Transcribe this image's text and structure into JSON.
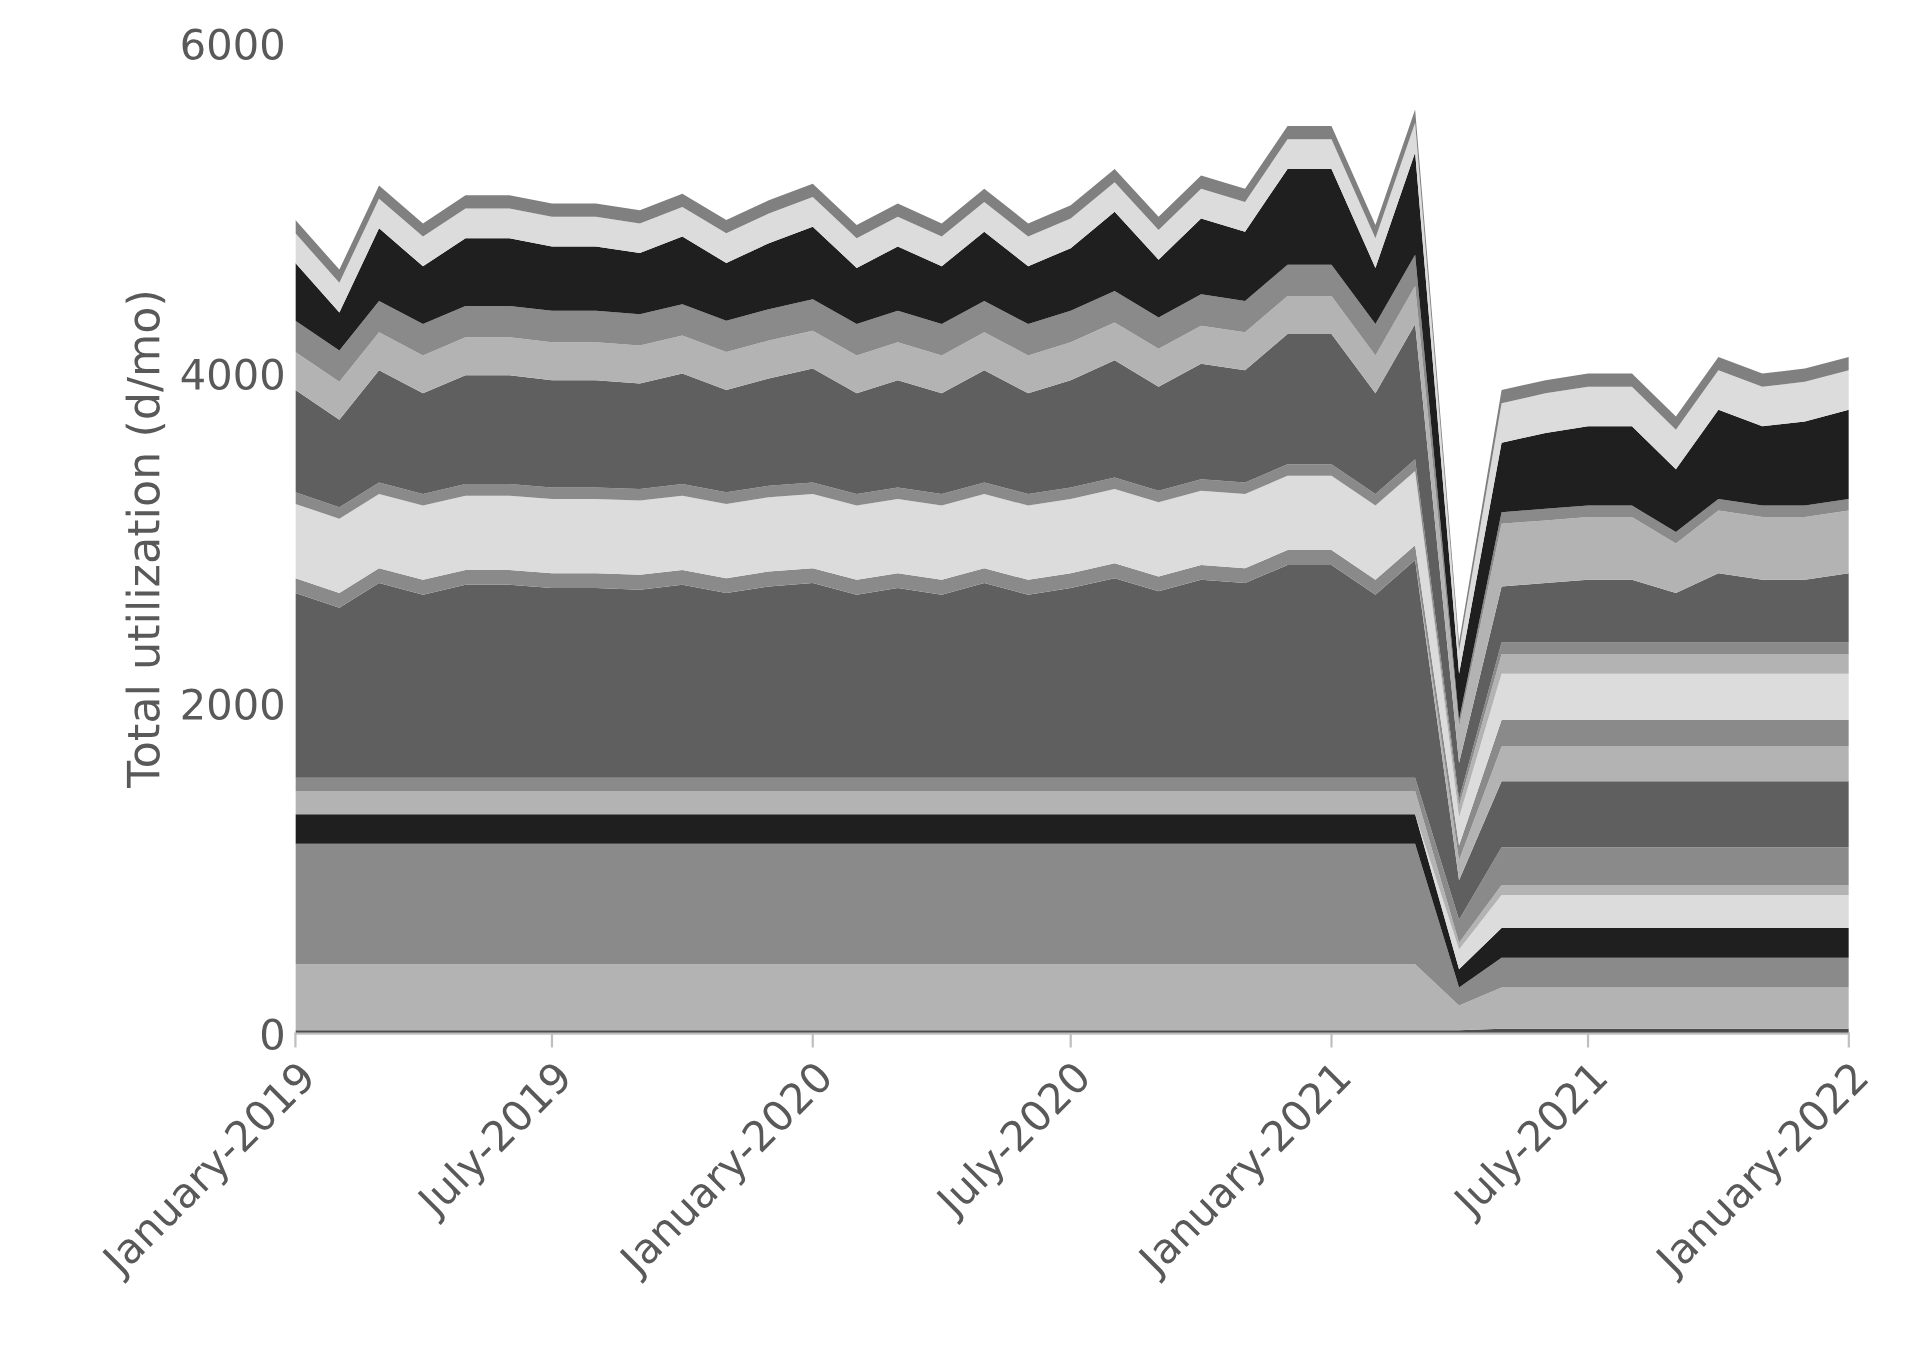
{
  "chart_data": {
    "type": "area",
    "stacked": true,
    "ylabel": "Total utilization (d/mo)",
    "x": [
      "2019-01",
      "2019-02",
      "2019-03",
      "2019-04",
      "2019-05",
      "2019-06",
      "2019-07",
      "2019-08",
      "2019-09",
      "2019-10",
      "2019-11",
      "2019-12",
      "2020-01",
      "2020-02",
      "2020-03",
      "2020-04",
      "2020-05",
      "2020-06",
      "2020-07",
      "2020-08",
      "2020-09",
      "2020-10",
      "2020-11",
      "2020-12",
      "2021-01",
      "2021-02",
      "2021-03",
      "2021-04",
      "2021-05",
      "2021-06",
      "2021-07",
      "2021-08",
      "2021-09",
      "2021-10",
      "2021-11",
      "2021-12",
      "2022-01"
    ],
    "xlim": [
      "2019-01",
      "2022-01"
    ],
    "xticks": [
      {
        "value": "2019-01",
        "label": "January-2019"
      },
      {
        "value": "2019-07",
        "label": "July-2019"
      },
      {
        "value": "2020-01",
        "label": "January-2020"
      },
      {
        "value": "2020-07",
        "label": "July-2020"
      },
      {
        "value": "2021-01",
        "label": "January-2021"
      },
      {
        "value": "2021-07",
        "label": "July-2021"
      },
      {
        "value": "2022-01",
        "label": "January-2022"
      }
    ],
    "ylim": [
      0,
      6000
    ],
    "yticks": [
      0,
      2000,
      4000,
      6000
    ],
    "grid": false,
    "series": [
      {
        "color": "#4d4d4d",
        "values": [
          20,
          20,
          20,
          20,
          20,
          20,
          20,
          20,
          20,
          20,
          20,
          20,
          20,
          20,
          20,
          20,
          20,
          20,
          20,
          20,
          20,
          20,
          20,
          20,
          20,
          20,
          20,
          20,
          30,
          30,
          30,
          30,
          30,
          30,
          30,
          30,
          30
        ]
      },
      {
        "color": "#b3b3b3",
        "values": [
          400,
          400,
          400,
          400,
          400,
          400,
          400,
          400,
          400,
          400,
          400,
          400,
          400,
          400,
          400,
          400,
          400,
          400,
          400,
          400,
          400,
          400,
          400,
          400,
          400,
          400,
          400,
          150,
          250,
          250,
          250,
          250,
          250,
          250,
          250,
          250,
          250
        ]
      },
      {
        "color": "#8a8a8a",
        "values": [
          730,
          730,
          730,
          730,
          730,
          730,
          730,
          730,
          730,
          730,
          730,
          730,
          730,
          730,
          730,
          730,
          730,
          730,
          730,
          730,
          730,
          730,
          730,
          730,
          730,
          730,
          730,
          110,
          180,
          180,
          180,
          180,
          180,
          180,
          180,
          180,
          180
        ]
      },
      {
        "color": "#1f1f1f",
        "values": [
          180,
          180,
          180,
          180,
          180,
          180,
          180,
          180,
          180,
          180,
          180,
          180,
          180,
          180,
          180,
          180,
          180,
          180,
          180,
          180,
          180,
          180,
          180,
          180,
          180,
          180,
          180,
          110,
          180,
          180,
          180,
          180,
          180,
          180,
          180,
          180,
          180
        ]
      },
      {
        "color": "#dcdcdc",
        "values": [
          0,
          0,
          0,
          0,
          0,
          0,
          0,
          0,
          0,
          0,
          0,
          0,
          0,
          0,
          0,
          0,
          0,
          0,
          0,
          0,
          0,
          0,
          0,
          0,
          0,
          0,
          0,
          120,
          200,
          200,
          200,
          200,
          200,
          200,
          200,
          200,
          200
        ]
      },
      {
        "color": "#b3b3b3",
        "values": [
          140,
          140,
          140,
          140,
          140,
          140,
          140,
          140,
          140,
          140,
          140,
          140,
          140,
          140,
          140,
          140,
          140,
          140,
          140,
          140,
          140,
          140,
          140,
          140,
          140,
          140,
          140,
          40,
          60,
          60,
          60,
          60,
          60,
          60,
          60,
          60,
          60
        ]
      },
      {
        "color": "#8a8a8a",
        "values": [
          80,
          80,
          80,
          80,
          80,
          80,
          80,
          80,
          80,
          80,
          80,
          80,
          80,
          80,
          80,
          80,
          80,
          80,
          80,
          80,
          80,
          80,
          80,
          80,
          80,
          80,
          80,
          140,
          230,
          230,
          230,
          230,
          230,
          230,
          230,
          230,
          230
        ]
      },
      {
        "color": "#5f5f5f",
        "values": [
          1120,
          1030,
          1180,
          1110,
          1170,
          1170,
          1150,
          1150,
          1140,
          1170,
          1120,
          1160,
          1180,
          1110,
          1150,
          1110,
          1180,
          1110,
          1150,
          1210,
          1130,
          1200,
          1180,
          1290,
          1290,
          1110,
          1320,
          240,
          400,
          400,
          400,
          400,
          400,
          400,
          400,
          400,
          400
        ]
      },
      {
        "color": "#b3b3b3",
        "values": [
          0,
          0,
          0,
          0,
          0,
          0,
          0,
          0,
          0,
          0,
          0,
          0,
          0,
          0,
          0,
          0,
          0,
          0,
          0,
          0,
          0,
          0,
          0,
          0,
          0,
          0,
          0,
          120,
          210,
          210,
          210,
          210,
          210,
          210,
          210,
          210,
          210
        ]
      },
      {
        "color": "#8a8a8a",
        "values": [
          90,
          90,
          90,
          90,
          90,
          90,
          90,
          90,
          90,
          90,
          90,
          90,
          90,
          90,
          90,
          90,
          90,
          90,
          90,
          90,
          90,
          90,
          90,
          90,
          90,
          90,
          90,
          90,
          160,
          160,
          160,
          160,
          160,
          160,
          160,
          160,
          160
        ]
      },
      {
        "color": "#dcdcdc",
        "values": [
          450,
          450,
          450,
          450,
          450,
          450,
          450,
          450,
          450,
          450,
          450,
          450,
          450,
          450,
          450,
          450,
          450,
          450,
          450,
          450,
          450,
          450,
          450,
          450,
          450,
          450,
          450,
          170,
          280,
          280,
          280,
          280,
          280,
          280,
          280,
          280,
          280
        ]
      },
      {
        "color": "#b3b3b3",
        "values": [
          0,
          0,
          0,
          0,
          0,
          0,
          0,
          0,
          0,
          0,
          0,
          0,
          0,
          0,
          0,
          0,
          0,
          0,
          0,
          0,
          0,
          0,
          0,
          0,
          0,
          0,
          0,
          70,
          120,
          120,
          120,
          120,
          120,
          120,
          120,
          120,
          120
        ]
      },
      {
        "color": "#8a8a8a",
        "values": [
          70,
          70,
          70,
          70,
          70,
          70,
          70,
          70,
          70,
          70,
          70,
          70,
          70,
          70,
          70,
          70,
          70,
          70,
          70,
          70,
          70,
          70,
          70,
          70,
          70,
          70,
          70,
          40,
          70,
          70,
          70,
          70,
          70,
          70,
          70,
          70,
          70
        ]
      },
      {
        "color": "#5f5f5f",
        "values": [
          620,
          530,
          680,
          610,
          660,
          660,
          650,
          650,
          640,
          670,
          620,
          650,
          690,
          610,
          650,
          610,
          680,
          610,
          650,
          710,
          630,
          700,
          680,
          790,
          790,
          610,
          820,
          220,
          340,
          360,
          380,
          380,
          300,
          420,
          380,
          380,
          420
        ]
      },
      {
        "color": "#b3b3b3",
        "values": [
          230,
          230,
          230,
          230,
          230,
          230,
          230,
          230,
          230,
          230,
          230,
          230,
          230,
          230,
          230,
          230,
          230,
          230,
          230,
          230,
          230,
          230,
          230,
          230,
          230,
          230,
          230,
          220,
          380,
          380,
          380,
          380,
          300,
          380,
          380,
          380,
          380
        ]
      },
      {
        "color": "#8a8a8a",
        "values": [
          190,
          190,
          190,
          190,
          190,
          190,
          190,
          190,
          190,
          190,
          190,
          190,
          190,
          190,
          190,
          190,
          190,
          190,
          190,
          190,
          190,
          190,
          190,
          190,
          190,
          190,
          190,
          40,
          70,
          70,
          70,
          70,
          70,
          70,
          70,
          70,
          70
        ]
      },
      {
        "color": "#1f1f1f",
        "values": [
          350,
          230,
          440,
          350,
          410,
          410,
          390,
          390,
          370,
          410,
          350,
          400,
          440,
          340,
          390,
          350,
          420,
          350,
          380,
          480,
          350,
          460,
          420,
          580,
          580,
          340,
          620,
          280,
          420,
          460,
          480,
          480,
          380,
          540,
          480,
          510,
          540
        ]
      },
      {
        "color": "#dcdcdc",
        "values": [
          180,
          180,
          180,
          180,
          180,
          180,
          180,
          180,
          180,
          180,
          180,
          180,
          180,
          180,
          180,
          180,
          180,
          180,
          180,
          180,
          180,
          180,
          180,
          180,
          180,
          180,
          180,
          140,
          240,
          240,
          240,
          240,
          240,
          240,
          240,
          240,
          240
        ]
      },
      {
        "color": "#808080",
        "values": [
          80,
          80,
          80,
          80,
          80,
          80,
          80,
          80,
          80,
          80,
          80,
          80,
          80,
          80,
          80,
          80,
          80,
          80,
          80,
          80,
          80,
          80,
          80,
          80,
          80,
          80,
          80,
          50,
          80,
          80,
          80,
          80,
          80,
          80,
          80,
          80,
          80
        ]
      }
    ]
  }
}
